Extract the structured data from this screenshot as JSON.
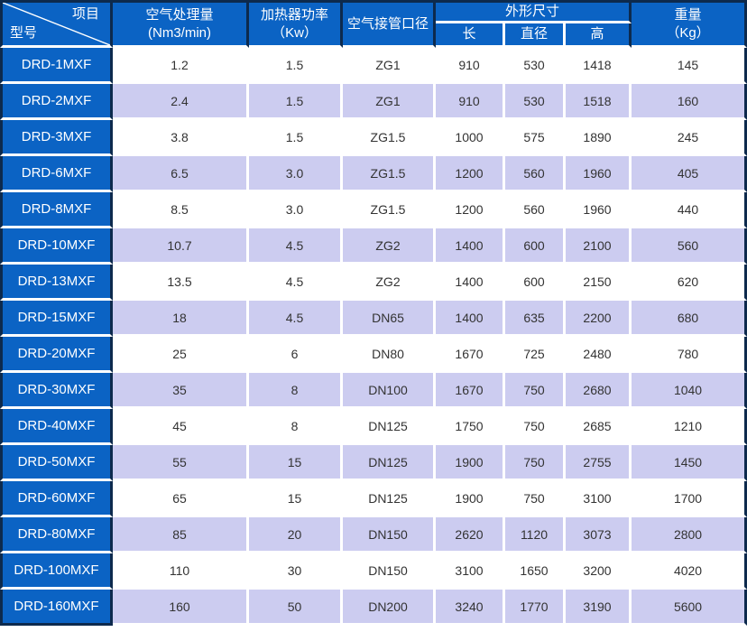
{
  "table": {
    "corner": {
      "top_right": "项目",
      "bottom_left": "型号"
    },
    "columns": {
      "air_capacity": {
        "line1": "空气处理量",
        "line2": "(Nm3/min)"
      },
      "heater_power": {
        "line1": "加热器功率",
        "line2": "（Kw）"
      },
      "pipe_diameter": "空气接管口径",
      "dimensions_group": "外形尺寸",
      "dim_length": "长",
      "dim_diameter": "直径",
      "dim_height": "高",
      "weight": {
        "line1": "重量",
        "line2": "（Kg）"
      }
    },
    "colors": {
      "header_blue": "#0b63c4",
      "row_alt_lavender": "#ccccf0",
      "border_navy": "#0d2a4d",
      "separator_white": "#ffffff",
      "data_text": "#333333"
    },
    "rows": [
      {
        "model": "DRD-1MXF",
        "capacity": "1.2",
        "power": "1.5",
        "port": "ZG1",
        "length": "910",
        "diameter": "530",
        "height": "1418",
        "weight": "145"
      },
      {
        "model": "DRD-2MXF",
        "capacity": "2.4",
        "power": "1.5",
        "port": "ZG1",
        "length": "910",
        "diameter": "530",
        "height": "1518",
        "weight": "160"
      },
      {
        "model": "DRD-3MXF",
        "capacity": "3.8",
        "power": "1.5",
        "port": "ZG1.5",
        "length": "1000",
        "diameter": "575",
        "height": "1890",
        "weight": "245"
      },
      {
        "model": "DRD-6MXF",
        "capacity": "6.5",
        "power": "3.0",
        "port": "ZG1.5",
        "length": "1200",
        "diameter": "560",
        "height": "1960",
        "weight": "405"
      },
      {
        "model": "DRD-8MXF",
        "capacity": "8.5",
        "power": "3.0",
        "port": "ZG1.5",
        "length": "1200",
        "diameter": "560",
        "height": "1960",
        "weight": "440"
      },
      {
        "model": "DRD-10MXF",
        "capacity": "10.7",
        "power": "4.5",
        "port": "ZG2",
        "length": "1400",
        "diameter": "600",
        "height": "2100",
        "weight": "560"
      },
      {
        "model": "DRD-13MXF",
        "capacity": "13.5",
        "power": "4.5",
        "port": "ZG2",
        "length": "1400",
        "diameter": "600",
        "height": "2150",
        "weight": "620"
      },
      {
        "model": "DRD-15MXF",
        "capacity": "18",
        "power": "4.5",
        "port": "DN65",
        "length": "1400",
        "diameter": "635",
        "height": "2200",
        "weight": "680"
      },
      {
        "model": "DRD-20MXF",
        "capacity": "25",
        "power": "6",
        "port": "DN80",
        "length": "1670",
        "diameter": "725",
        "height": "2480",
        "weight": "780"
      },
      {
        "model": "DRD-30MXF",
        "capacity": "35",
        "power": "8",
        "port": "DN100",
        "length": "1670",
        "diameter": "750",
        "height": "2680",
        "weight": "1040"
      },
      {
        "model": "DRD-40MXF",
        "capacity": "45",
        "power": "8",
        "port": "DN125",
        "length": "1750",
        "diameter": "750",
        "height": "2685",
        "weight": "1210"
      },
      {
        "model": "DRD-50MXF",
        "capacity": "55",
        "power": "15",
        "port": "DN125",
        "length": "1900",
        "diameter": "750",
        "height": "2755",
        "weight": "1450"
      },
      {
        "model": "DRD-60MXF",
        "capacity": "65",
        "power": "15",
        "port": "DN125",
        "length": "1900",
        "diameter": "750",
        "height": "3100",
        "weight": "1700"
      },
      {
        "model": "DRD-80MXF",
        "capacity": "85",
        "power": "20",
        "port": "DN150",
        "length": "2620",
        "diameter": "1120",
        "height": "3073",
        "weight": "2800"
      },
      {
        "model": "DRD-100MXF",
        "capacity": "110",
        "power": "30",
        "port": "DN150",
        "length": "3100",
        "diameter": "1650",
        "height": "3200",
        "weight": "4020"
      },
      {
        "model": "DRD-160MXF",
        "capacity": "160",
        "power": "50",
        "port": "DN200",
        "length": "3240",
        "diameter": "1770",
        "height": "3190",
        "weight": "5600"
      }
    ]
  }
}
